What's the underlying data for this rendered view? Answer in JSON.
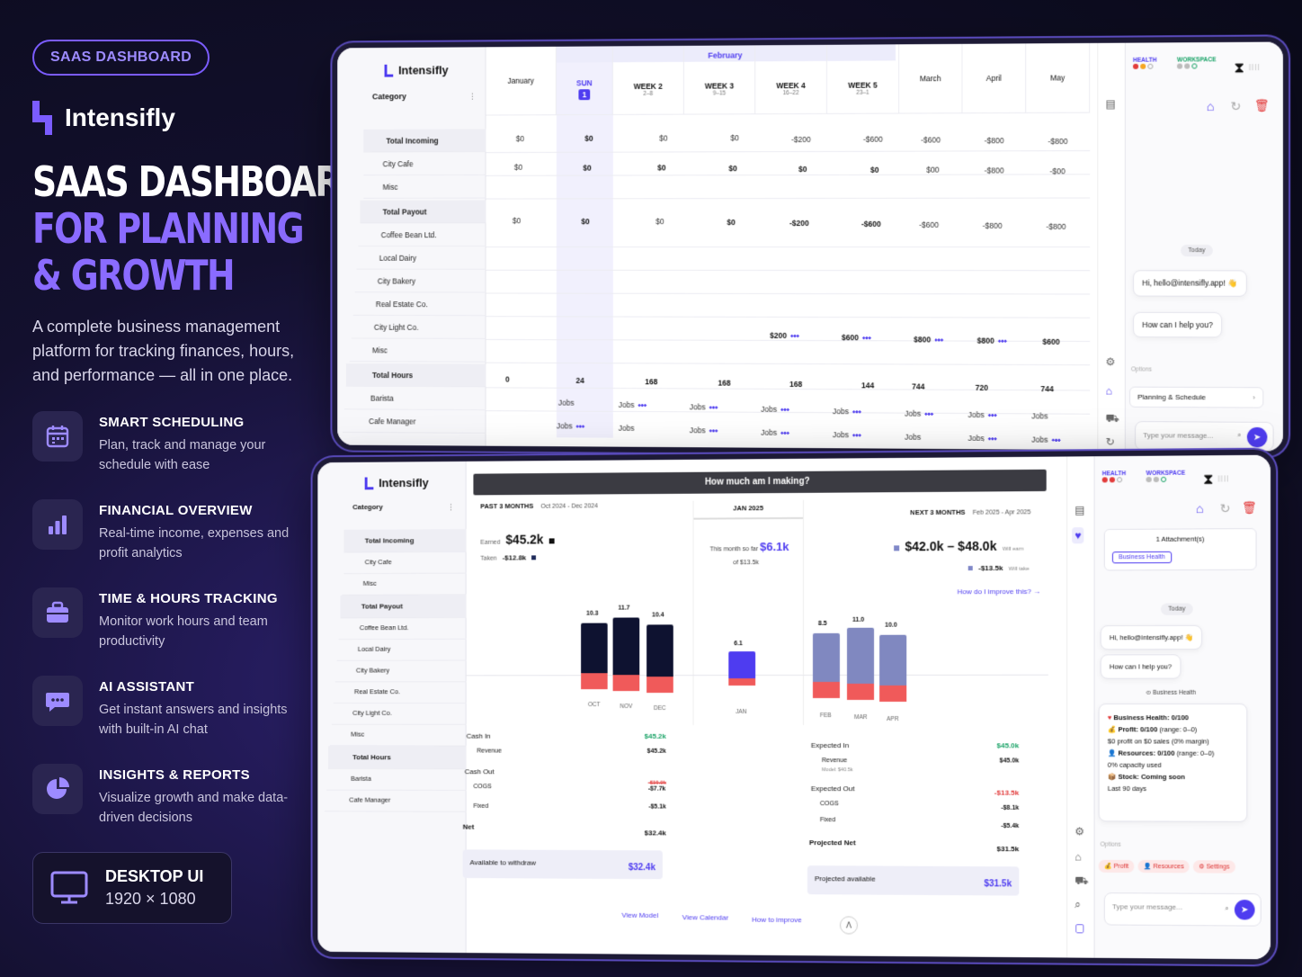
{
  "marketing": {
    "pill": "SAAS DASHBOARD",
    "brand": "Intensifly",
    "headline_line1": "SAAS DASHBOARD",
    "headline_line2": "FOR PLANNING",
    "headline_line3": "& GROWTH",
    "description": "A complete business management platform for tracking finances, hours, and performance — all in one place.",
    "features": [
      {
        "icon": "calendar-icon",
        "title": "SMART SCHEDULING",
        "text": "Plan, track and manage your schedule with ease"
      },
      {
        "icon": "bar-chart-icon",
        "title": "FINANCIAL OVERVIEW",
        "text": "Real-time income, expenses and profit analytics"
      },
      {
        "icon": "briefcase-icon",
        "title": "TIME & HOURS TRACKING",
        "text": "Monitor work hours and team productivity"
      },
      {
        "icon": "chat-icon",
        "title": "AI ASSISTANT",
        "text": "Get instant answers and insights with built-in AI chat"
      },
      {
        "icon": "pie-chart-icon",
        "title": "INSIGHTS & REPORTS",
        "text": "Visualize growth and make data-driven decisions"
      }
    ],
    "desktop_title": "DESKTOP UI",
    "desktop_res": "1920 × 1080",
    "accent": "#7b5cff"
  },
  "screen1": {
    "brand": "Intensifly",
    "category_label": "Category",
    "rows": [
      "Total Incoming",
      "City Cafe",
      "Misc",
      "Total Payout",
      "Coffee Bean Ltd.",
      "Local Dairy",
      "City Bakery",
      "Real Estate Co.",
      "City Light Co.",
      "Misc",
      "Total Hours",
      "Barista",
      "Cafe Manager"
    ],
    "month_header": "February",
    "columns": [
      {
        "label": "January",
        "sub": ""
      },
      {
        "label": "SUN",
        "sub": "1"
      },
      {
        "label": "WEEK 2",
        "sub": "2–8"
      },
      {
        "label": "WEEK 3",
        "sub": "9–15"
      },
      {
        "label": "WEEK 4",
        "sub": "16–22"
      },
      {
        "label": "WEEK 5",
        "sub": "23–1"
      },
      {
        "label": "March",
        "sub": ""
      },
      {
        "label": "April",
        "sub": ""
      },
      {
        "label": "May",
        "sub": ""
      }
    ],
    "incoming": [
      "$0",
      "$0",
      "$0",
      "$0",
      "-$200",
      "-$600",
      "-$600",
      "-$800",
      "-$800"
    ],
    "city_cafe": [
      "$0",
      "$0",
      "$0",
      "$0",
      "$0",
      "$0",
      "$00",
      "-$800",
      "-$00"
    ],
    "payout": [
      "$0",
      "$0",
      "$0",
      "$0",
      "-$200",
      "-$600",
      "-$600",
      "-$800",
      "-$800"
    ],
    "city_light": [
      "",
      "",
      "",
      "",
      "$200",
      "$600",
      "$800",
      "$800",
      "$600"
    ],
    "hours": [
      "0",
      "24",
      "168",
      "168",
      "168",
      "144",
      "744",
      "720",
      "744"
    ],
    "jobs_label": "Jobs",
    "chat": {
      "health": "HEALTH",
      "workspace": "WORKSPACE",
      "today": "Today",
      "greeting": "Hi, hello@intensifly.app! 👋",
      "question": "How can I help you?",
      "options_label": "Options",
      "option": "Planning & Schedule",
      "placeholder": "Type your message..."
    }
  },
  "screen2": {
    "brand": "Intensifly",
    "category_label": "Category",
    "rows": [
      "Total Incoming",
      "City Cafe",
      "Misc",
      "Total Payout",
      "Coffee Bean Ltd.",
      "Local Dairy",
      "City Bakery",
      "Real Estate Co.",
      "City Light Co.",
      "Misc",
      "Total Hours",
      "Barista",
      "Cafe Manager"
    ],
    "title": "How much am I making?",
    "past_label": "PAST 3 MONTHS",
    "past_range": "Oct 2024 - Dec 2024",
    "current_label": "JAN 2025",
    "next_label": "NEXT 3 MONTHS",
    "next_range": "Feb 2025 - Apr 2025",
    "earned_label": "Earned",
    "earned": "$45.2k",
    "taken_label": "Taken",
    "taken": "-$12.8k",
    "month_so_far_label": "This month so far",
    "month_so_far": "$6.1k",
    "of_label": "of $13.5k",
    "forecast": "$42.0k – $48.0k",
    "will_earn": "Will earn",
    "forecast_take": "-$13.5k",
    "will_take": "Will take",
    "improve_link": "How do I improve this? →",
    "past_bars": [
      {
        "m": "OCT",
        "v": "10.3"
      },
      {
        "m": "NOV",
        "v": "11.7"
      },
      {
        "m": "DEC",
        "v": "10.4"
      }
    ],
    "current_bar": {
      "m": "JAN",
      "v": "6.1"
    },
    "next_bars": [
      {
        "m": "FEB",
        "v": "8.5"
      },
      {
        "m": "MAR",
        "v": "11.0"
      },
      {
        "m": "APR",
        "v": "10.0"
      }
    ],
    "left_fin": {
      "cash_in": "Cash In",
      "cash_in_v": "$45.2k",
      "revenue": "Revenue",
      "revenue_v": "$45.2k",
      "cash_out": "Cash Out",
      "cogs": "COGS",
      "cogs_v": "-$7.7k",
      "cogs_old": "-$10.9k",
      "fixed": "Fixed",
      "fixed_v": "-$5.1k",
      "net": "Net",
      "net_v": "$32.4k",
      "avail": "Available to withdraw",
      "avail_v": "$32.4k"
    },
    "right_fin": {
      "exp_in": "Expected In",
      "exp_in_v": "$45.0k",
      "revenue": "Revenue",
      "revenue_v": "$45.0k",
      "model": "Model: $40.5k",
      "exp_out": "Expected Out",
      "exp_out_v": "-$13.5k",
      "cogs": "COGS",
      "cogs_v": "-$8.1k",
      "fixed": "Fixed",
      "fixed_v": "-$5.4k",
      "net": "Projected Net",
      "net_v": "$31.5k",
      "avail": "Projected available",
      "avail_v": "$31.5k"
    },
    "footer_links": [
      "View Model",
      "View Calendar",
      "How to improve"
    ],
    "chat": {
      "health": "HEALTH",
      "workspace": "WORKSPACE",
      "attachment": "1 Attachment(s)",
      "attach_badge": "Business Health",
      "today": "Today",
      "greeting": "Hi, hello@intensifly.app! 👋",
      "question": "How can I help you?",
      "tag": "Business Health",
      "bh_title": "Business Health: 0/100",
      "profit": "Profit: 0/100",
      "profit_range": "(range: 0–0)",
      "profit_note": "$0 profit on $0 sales (0% margin)",
      "resources": "Resources: 0/100",
      "resources_range": "(range: 0–0)",
      "resources_note": "0% capacity used",
      "stock": "Stock: Coming soon",
      "period": "Last 90 days",
      "options_label": "Options",
      "chips": [
        "Profit",
        "Resources",
        "Settings"
      ],
      "placeholder": "Type your message..."
    }
  }
}
